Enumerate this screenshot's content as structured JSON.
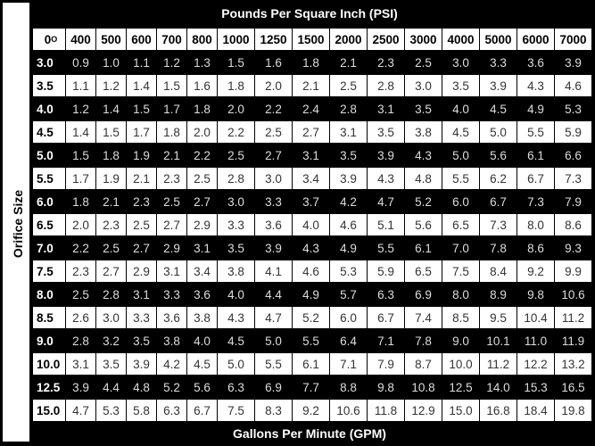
{
  "title": "Pounds Per Square Inch (PSI)",
  "row_axis_label": "Orifice Size",
  "footer": "Gallons Per Minute (GPM)",
  "corner_label": "0",
  "corner_superscript": "O",
  "columns": [
    "400",
    "500",
    "600",
    "700",
    "800",
    "1000",
    "1250",
    "1500",
    "2000",
    "2500",
    "3000",
    "4000",
    "5000",
    "6000",
    "7000"
  ],
  "rows": [
    {
      "size": "3.0",
      "values": [
        "0.9",
        "1.0",
        "1.1",
        "1.2",
        "1.3",
        "1.5",
        "1.6",
        "1.8",
        "2.1",
        "2.3",
        "2.5",
        "3.0",
        "3.3",
        "3.6",
        "3.9"
      ]
    },
    {
      "size": "3.5",
      "values": [
        "1.1",
        "1.2",
        "1.4",
        "1.5",
        "1.6",
        "1.8",
        "2.0",
        "2.1",
        "2.5",
        "2.8",
        "3.0",
        "3.5",
        "3.9",
        "4.3",
        "4.6"
      ]
    },
    {
      "size": "4.0",
      "values": [
        "1.2",
        "1.4",
        "1.5",
        "1.7",
        "1.8",
        "2.0",
        "2.2",
        "2.4",
        "2.8",
        "3.1",
        "3.5",
        "4.0",
        "4.5",
        "4.9",
        "5.3"
      ]
    },
    {
      "size": "4.5",
      "values": [
        "1.4",
        "1.5",
        "1.7",
        "1.8",
        "2.0",
        "2.2",
        "2.5",
        "2.7",
        "3.1",
        "3.5",
        "3.8",
        "4.5",
        "5.0",
        "5.5",
        "5.9"
      ]
    },
    {
      "size": "5.0",
      "values": [
        "1.5",
        "1.8",
        "1.9",
        "2.1",
        "2.2",
        "2.5",
        "2.7",
        "3.1",
        "3.5",
        "3.9",
        "4.3",
        "5.0",
        "5.6",
        "6.1",
        "6.6"
      ]
    },
    {
      "size": "5.5",
      "values": [
        "1.7",
        "1.9",
        "2.1",
        "2.3",
        "2.5",
        "2.8",
        "3.0",
        "3.4",
        "3.9",
        "4.3",
        "4.8",
        "5.5",
        "6.2",
        "6.7",
        "7.3"
      ]
    },
    {
      "size": "6.0",
      "values": [
        "1.8",
        "2.1",
        "2.3",
        "2.5",
        "2.7",
        "3.0",
        "3.3",
        "3.7",
        "4.2",
        "4.7",
        "5.2",
        "6.0",
        "6.7",
        "7.3",
        "7.9"
      ]
    },
    {
      "size": "6.5",
      "values": [
        "2.0",
        "2.3",
        "2.5",
        "2.7",
        "2.9",
        "3.3",
        "3.6",
        "4.0",
        "4.6",
        "5.1",
        "5.6",
        "6.5",
        "7.3",
        "8.0",
        "8.6"
      ]
    },
    {
      "size": "7.0",
      "values": [
        "2.2",
        "2.5",
        "2.7",
        "2.9",
        "3.1",
        "3.5",
        "3.9",
        "4.3",
        "4.9",
        "5.5",
        "6.1",
        "7.0",
        "7.8",
        "8.6",
        "9.3"
      ]
    },
    {
      "size": "7.5",
      "values": [
        "2.3",
        "2.7",
        "2.9",
        "3.1",
        "3.4",
        "3.8",
        "4.1",
        "4.6",
        "5.3",
        "5.9",
        "6.5",
        "7.5",
        "8.4",
        "9.2",
        "9.9"
      ]
    },
    {
      "size": "8.0",
      "values": [
        "2.5",
        "2.8",
        "3.1",
        "3.3",
        "3.6",
        "4.0",
        "4.4",
        "4.9",
        "5.7",
        "6.3",
        "6.9",
        "8.0",
        "8.9",
        "9.8",
        "10.6"
      ]
    },
    {
      "size": "8.5",
      "values": [
        "2.6",
        "3.0",
        "3.3",
        "3.6",
        "3.8",
        "4.3",
        "4.7",
        "5.2",
        "6.0",
        "6.7",
        "7.4",
        "8.5",
        "9.5",
        "10.4",
        "11.2"
      ]
    },
    {
      "size": "9.0",
      "values": [
        "2.8",
        "3.2",
        "3.5",
        "3.8",
        "4.0",
        "4.5",
        "5.0",
        "5.5",
        "6.4",
        "7.1",
        "7.8",
        "9.0",
        "10.1",
        "11.0",
        "11.9"
      ]
    },
    {
      "size": "10.0",
      "values": [
        "3.1",
        "3.5",
        "3.9",
        "4.2",
        "4.5",
        "5.0",
        "5.5",
        "6.1",
        "7.1",
        "7.9",
        "8.7",
        "10.0",
        "11.2",
        "12.2",
        "13.2"
      ]
    },
    {
      "size": "12.5",
      "values": [
        "3.9",
        "4.4",
        "4.8",
        "5.2",
        "5.6",
        "6.3",
        "6.9",
        "7.7",
        "8.8",
        "9.8",
        "10.8",
        "12.5",
        "14.0",
        "15.3",
        "16.5"
      ]
    },
    {
      "size": "15.0",
      "values": [
        "4.7",
        "5.3",
        "5.8",
        "6.3",
        "6.7",
        "7.5",
        "8.3",
        "9.2",
        "10.6",
        "11.8",
        "12.9",
        "15.0",
        "16.8",
        "18.4",
        "19.8"
      ]
    }
  ],
  "colors": {
    "background": "#000000",
    "cell_light": "#ffffff",
    "text_dark": "#000000",
    "text_light": "#ffffff"
  }
}
